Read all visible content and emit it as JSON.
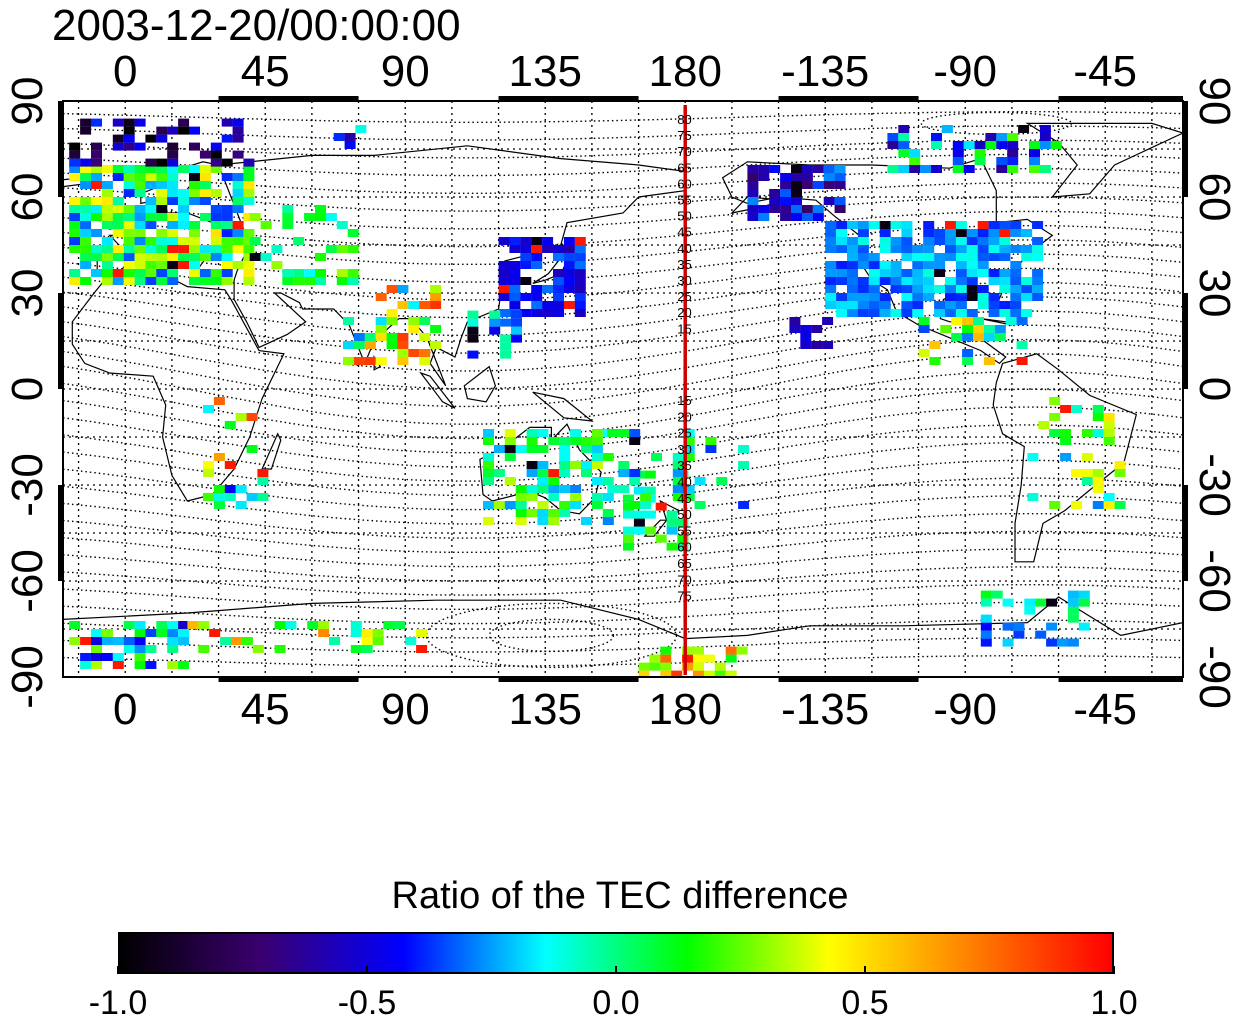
{
  "map": {
    "timestamp": "2003-12-20/00:00:00",
    "top_lon_labels": [
      "0",
      "45",
      "90",
      "135",
      "180",
      "-135",
      "-90",
      "-45"
    ],
    "bottom_lon_labels": [
      "0",
      "45",
      "90",
      "135",
      "180",
      "-135",
      "-90",
      "-45"
    ],
    "left_lat_labels": [
      "90",
      "60",
      "30",
      "0",
      "-30",
      "-60",
      "-90"
    ],
    "right_lat_labels": [
      "90",
      "60",
      "30",
      "0",
      "-30",
      "-60",
      "-90"
    ],
    "lon_values": [
      0,
      45,
      90,
      135,
      180,
      225,
      270,
      315
    ],
    "lat_values": [
      90,
      60,
      30,
      0,
      -30,
      -60,
      -90
    ],
    "lon_range": [
      -20,
      340
    ],
    "lat_range": [
      -90,
      90
    ],
    "grid": true,
    "meridian_marker_lon": 180,
    "meridian_marker_color": "#d00000",
    "contour_labels_north": [
      "80",
      "75",
      "70",
      "65",
      "60",
      "55",
      "50",
      "45",
      "40",
      "35",
      "30",
      "25",
      "20",
      "15"
    ],
    "contour_labels_south": [
      "15",
      "20",
      "25",
      "30",
      "35",
      "40",
      "45",
      "50",
      "55",
      "60",
      "65",
      "70",
      "75"
    ]
  },
  "colorbar": {
    "title": "Ratio of the TEC difference",
    "tick_labels": [
      "-1.0",
      "-0.5",
      "0.0",
      "0.5",
      "1.0"
    ],
    "tick_values": [
      -1.0,
      -0.5,
      0.0,
      0.5,
      1.0
    ],
    "range": [
      -1.0,
      1.0
    ],
    "colors": [
      "#000000",
      "#3a0070",
      "#0000ff",
      "#00ffff",
      "#00ff00",
      "#ffff00",
      "#ff8000",
      "#ff0000"
    ]
  }
}
